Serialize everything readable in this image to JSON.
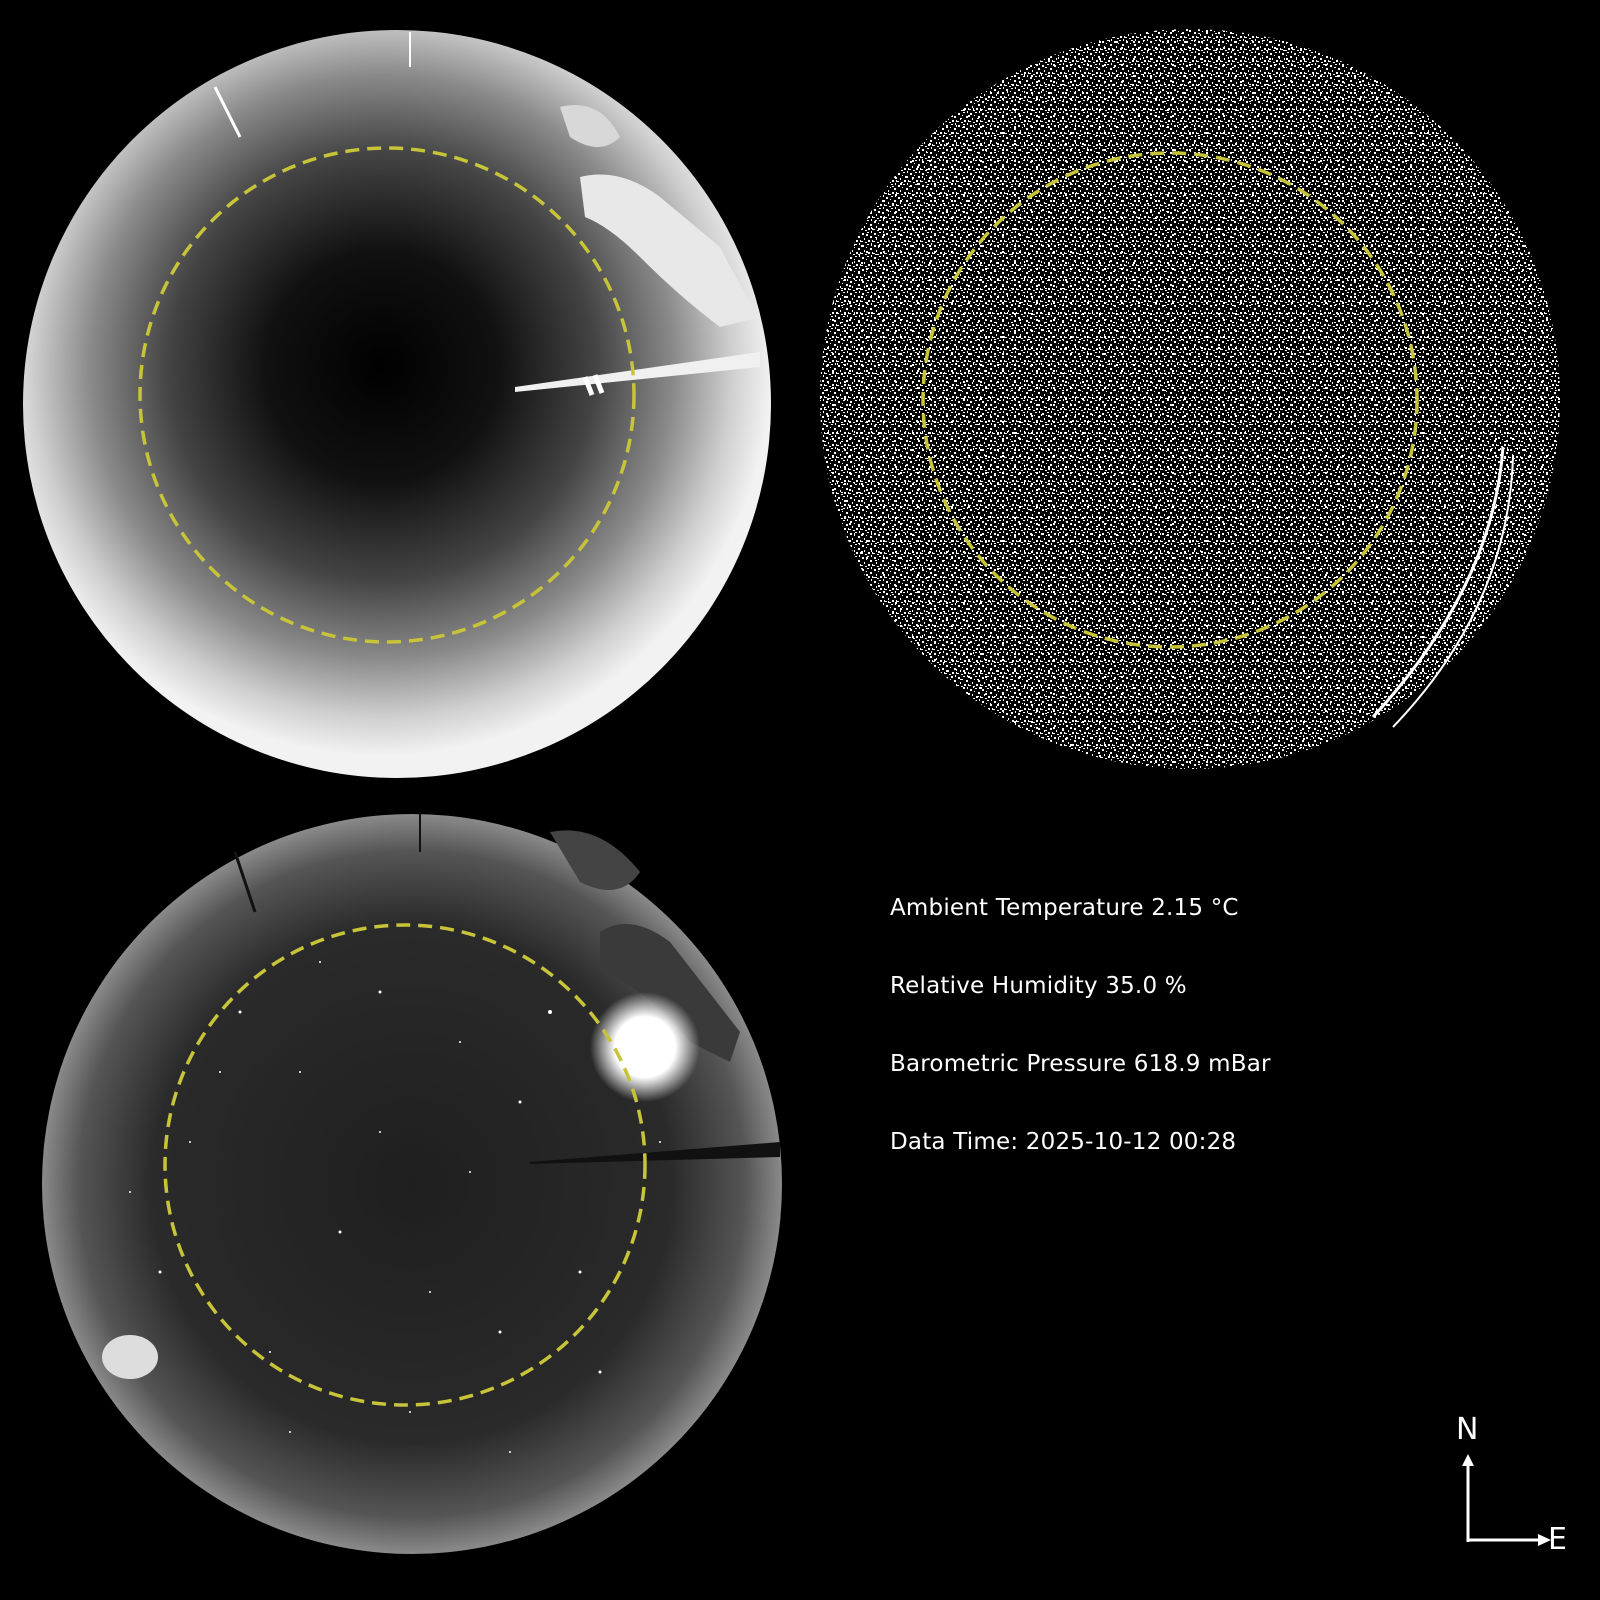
{
  "weather": {
    "ambient_temperature": "Ambient Temperature 2.15 °C",
    "relative_humidity": "Relative Humidity 35.0 %",
    "barometric_pressure": "Barometric Pressure 618.9 mBar",
    "data_time": "Data Time: 2025-10-12 00:28"
  },
  "compass": {
    "north": "N",
    "east": "E"
  },
  "colors": {
    "background": "#000000",
    "circle_guide": "#c8c43a",
    "text": "#ffffff"
  },
  "panels": [
    {
      "id": "top-left",
      "content": "grayscale all-sky camera view with mast (bright sky)"
    },
    {
      "id": "top-right",
      "content": "binary noise map of sky"
    },
    {
      "id": "bottom-left",
      "content": "night-sky all-sky camera view with moon and stars"
    }
  ]
}
